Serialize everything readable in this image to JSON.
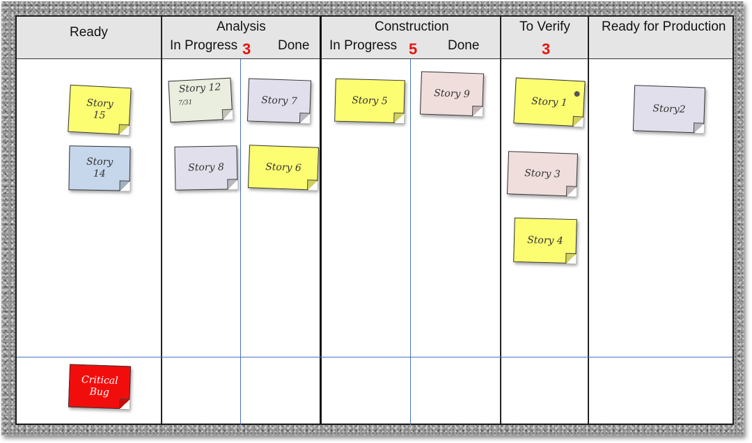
{
  "board": {
    "columns": {
      "ready": "Ready",
      "analysis": "Analysis",
      "analysis_in_progress": "In Progress",
      "analysis_wip": "3",
      "analysis_done": "Done",
      "construction": "Construction",
      "construction_in_progress": "In Progress",
      "construction_wip": "5",
      "construction_done": "Done",
      "to_verify": "To Verify",
      "to_verify_wip": "3",
      "ready_for_production": "Ready for Production"
    },
    "wip_color": "#e3140f",
    "stickies": {
      "story15": [
        "Story",
        "15"
      ],
      "story14": [
        "Story",
        "14"
      ],
      "critical_bug": [
        "Critical",
        "Bug"
      ],
      "story12": "Story 12",
      "story12_note": "7/31",
      "story7": "Story 7",
      "story8": "Story 8",
      "story6": "Story 6",
      "story5": "Story 5",
      "story9": "Story 9",
      "story1": "Story 1",
      "story3": "Story 3",
      "story4": "Story 4",
      "story2": "Story2"
    }
  }
}
